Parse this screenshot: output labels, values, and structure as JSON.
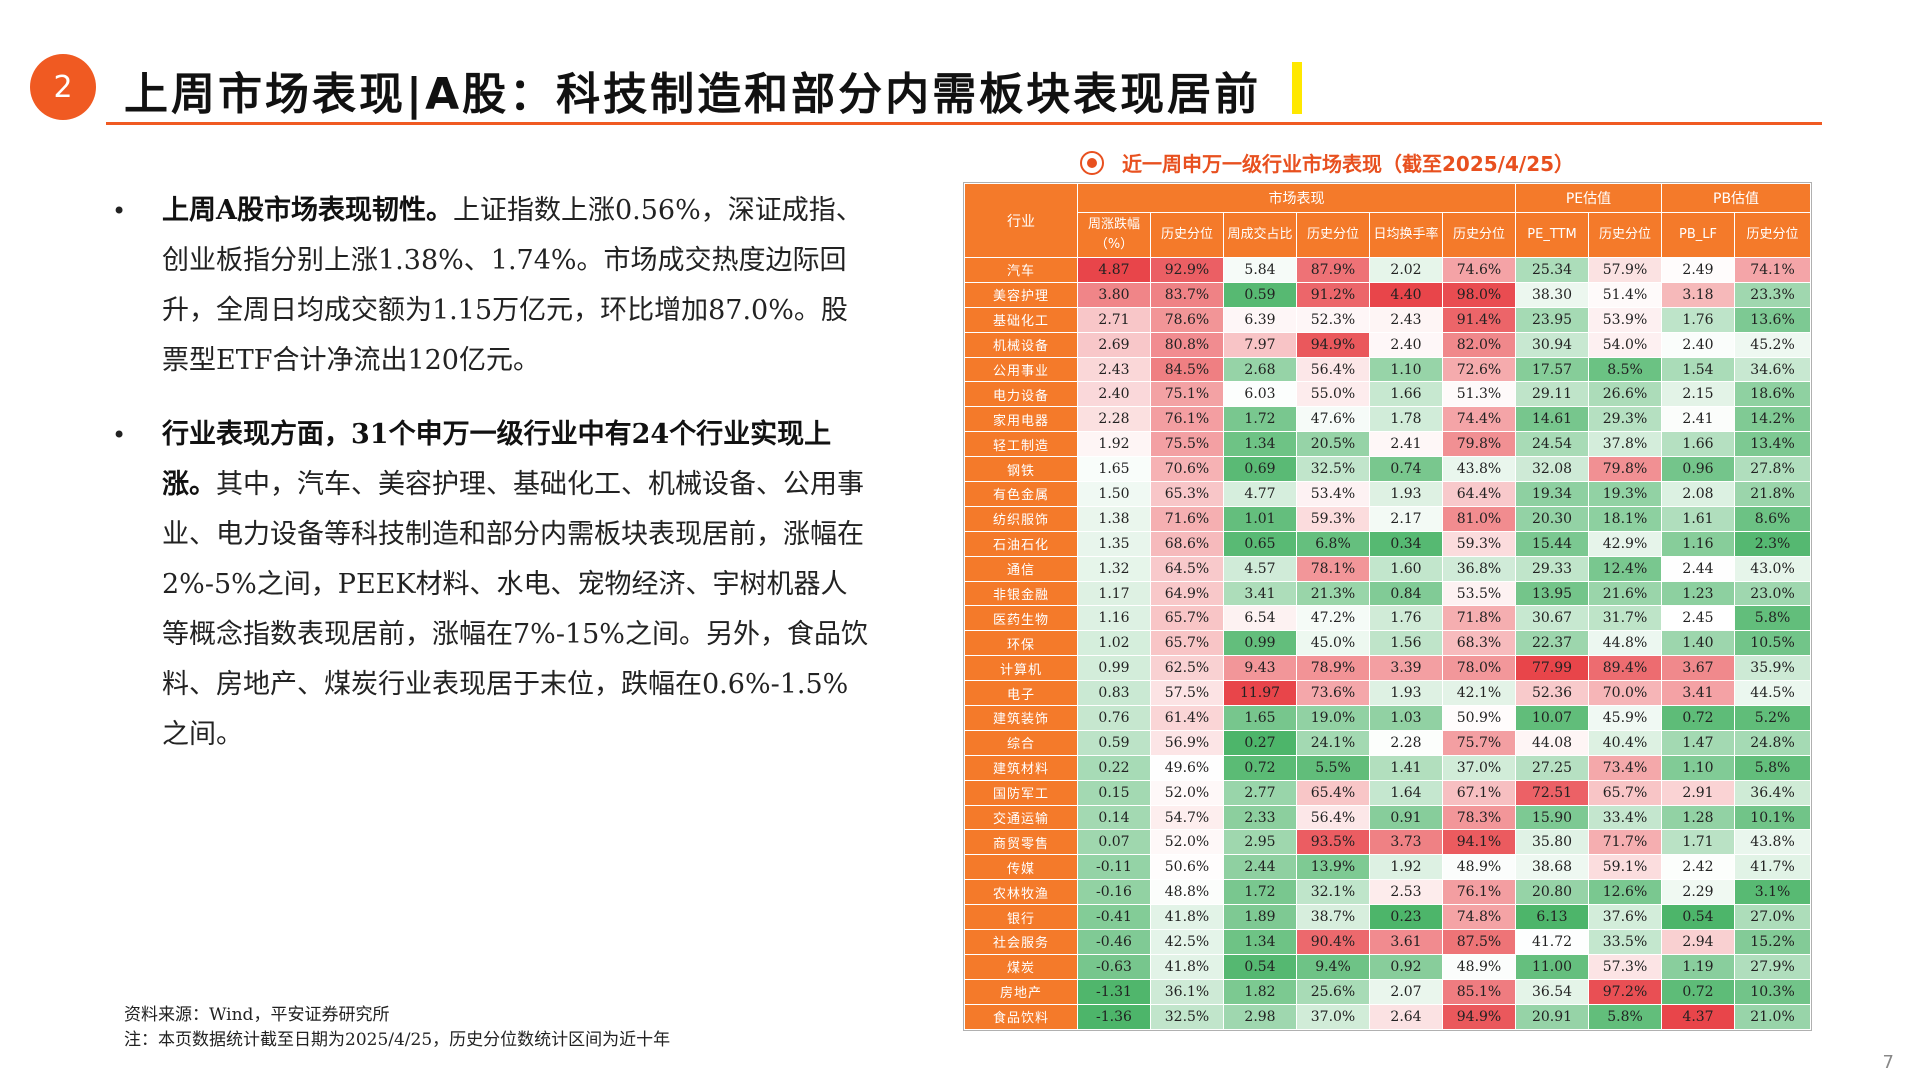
{
  "header": {
    "section_number": "2",
    "title": "上周市场表现|A股：科技制造和部分内需板块表现居前"
  },
  "bullets": [
    {
      "bold": "上周A股市场表现韧性。",
      "text": "上证指数上涨0.56%，深证成指、创业板指分别上涨1.38%、1.74%。市场成交热度边际回升，全周日均成交额为1.15万亿元，环比增加87.0%。股票型ETF合计净流出120亿元。"
    },
    {
      "bold": "行业表现方面，31个申万一级行业中有24个行业实现上涨。",
      "text": "其中，汽车、美容护理、基础化工、机械设备、公用事业、电力设备等科技制造和部分内需板块表现居前，涨幅在2%-5%之间，PEEK材料、水电、宠物经济、宇树机器人等概念指数表现居前，涨幅在7%-15%之间。另外，食品饮料、房地产、煤炭行业表现居于末位，跌幅在0.6%-1.5%之间。"
    }
  ],
  "footnote": {
    "source": "资料来源：Wind，平安证券研究所",
    "note": "注：本页数据统计截至日期为2025/4/25，历史分位数统计区间为近十年"
  },
  "page_number": "7",
  "table": {
    "caption": "近一周申万一级行业市场表现（截至2025/4/25）",
    "group_headers": {
      "industry": "行业",
      "market": "市场表现",
      "pe": "PE估值",
      "pb": "PB估值"
    },
    "sub_headers": {
      "weekly_change": "周涨跌幅（%）",
      "weekly_change_pct": "历史分位",
      "turnover_share": "周成交占比",
      "turnover_share_pct": "历史分位",
      "daily_turnover_rate": "日均换手率",
      "daily_turnover_rate_pct": "历史分位",
      "pe_ttm": "PE_TTM",
      "pe_ttm_pct": "历史分位",
      "pb_lf": "PB_LF",
      "pb_lf_pct": "历史分位"
    },
    "rows": [
      {
        "name": "汽车",
        "v": [
          "4.87",
          "92.9%",
          "5.84",
          "87.9%",
          "2.02",
          "74.6%",
          "25.34",
          "57.9%",
          "2.49",
          "74.1%"
        ]
      },
      {
        "name": "美容护理",
        "v": [
          "3.80",
          "83.7%",
          "0.59",
          "91.2%",
          "4.40",
          "98.0%",
          "38.30",
          "51.4%",
          "3.18",
          "23.3%"
        ]
      },
      {
        "name": "基础化工",
        "v": [
          "2.71",
          "78.6%",
          "6.39",
          "52.3%",
          "2.43",
          "91.4%",
          "23.95",
          "53.9%",
          "1.76",
          "13.6%"
        ]
      },
      {
        "name": "机械设备",
        "v": [
          "2.69",
          "80.8%",
          "7.97",
          "94.9%",
          "2.40",
          "82.0%",
          "30.94",
          "54.0%",
          "2.40",
          "45.2%"
        ]
      },
      {
        "name": "公用事业",
        "v": [
          "2.43",
          "84.5%",
          "2.68",
          "56.4%",
          "1.10",
          "72.6%",
          "17.57",
          "8.5%",
          "1.54",
          "34.6%"
        ]
      },
      {
        "name": "电力设备",
        "v": [
          "2.40",
          "75.1%",
          "6.03",
          "55.0%",
          "1.66",
          "51.3%",
          "29.11",
          "26.6%",
          "2.15",
          "18.6%"
        ]
      },
      {
        "name": "家用电器",
        "v": [
          "2.28",
          "76.1%",
          "1.72",
          "47.6%",
          "1.78",
          "74.4%",
          "14.61",
          "29.3%",
          "2.41",
          "14.2%"
        ]
      },
      {
        "name": "轻工制造",
        "v": [
          "1.92",
          "75.5%",
          "1.34",
          "20.5%",
          "2.41",
          "79.8%",
          "24.54",
          "37.8%",
          "1.66",
          "13.4%"
        ]
      },
      {
        "name": "钢铁",
        "v": [
          "1.65",
          "70.6%",
          "0.69",
          "32.5%",
          "0.74",
          "43.8%",
          "32.08",
          "79.8%",
          "0.96",
          "27.8%"
        ]
      },
      {
        "name": "有色金属",
        "v": [
          "1.50",
          "65.3%",
          "4.77",
          "53.4%",
          "1.93",
          "64.4%",
          "19.34",
          "19.3%",
          "2.08",
          "21.8%"
        ]
      },
      {
        "name": "纺织服饰",
        "v": [
          "1.38",
          "71.6%",
          "1.01",
          "59.3%",
          "2.17",
          "81.0%",
          "20.30",
          "18.1%",
          "1.61",
          "8.6%"
        ]
      },
      {
        "name": "石油石化",
        "v": [
          "1.35",
          "68.6%",
          "0.65",
          "6.8%",
          "0.34",
          "59.3%",
          "15.44",
          "42.9%",
          "1.16",
          "2.3%"
        ]
      },
      {
        "name": "通信",
        "v": [
          "1.32",
          "64.5%",
          "4.57",
          "78.1%",
          "1.60",
          "36.8%",
          "29.33",
          "12.4%",
          "2.44",
          "43.0%"
        ]
      },
      {
        "name": "非银金融",
        "v": [
          "1.17",
          "64.9%",
          "3.41",
          "21.3%",
          "0.84",
          "53.5%",
          "13.95",
          "21.6%",
          "1.23",
          "23.0%"
        ]
      },
      {
        "name": "医药生物",
        "v": [
          "1.16",
          "65.7%",
          "6.54",
          "47.2%",
          "1.76",
          "71.8%",
          "30.67",
          "31.7%",
          "2.45",
          "5.8%"
        ]
      },
      {
        "name": "环保",
        "v": [
          "1.02",
          "65.7%",
          "0.99",
          "45.0%",
          "1.56",
          "68.3%",
          "22.37",
          "44.8%",
          "1.40",
          "10.5%"
        ]
      },
      {
        "name": "计算机",
        "v": [
          "0.99",
          "62.5%",
          "9.43",
          "78.9%",
          "3.39",
          "78.0%",
          "77.99",
          "89.4%",
          "3.67",
          "35.9%"
        ]
      },
      {
        "name": "电子",
        "v": [
          "0.83",
          "57.5%",
          "11.97",
          "73.6%",
          "1.93",
          "42.1%",
          "52.36",
          "70.0%",
          "3.41",
          "44.5%"
        ]
      },
      {
        "name": "建筑装饰",
        "v": [
          "0.76",
          "61.4%",
          "1.65",
          "19.0%",
          "1.03",
          "50.9%",
          "10.07",
          "45.9%",
          "0.72",
          "5.2%"
        ]
      },
      {
        "name": "综合",
        "v": [
          "0.59",
          "56.9%",
          "0.27",
          "24.1%",
          "2.28",
          "75.7%",
          "44.08",
          "40.4%",
          "1.47",
          "24.8%"
        ]
      },
      {
        "name": "建筑材料",
        "v": [
          "0.22",
          "49.6%",
          "0.72",
          "5.5%",
          "1.41",
          "37.0%",
          "27.25",
          "73.4%",
          "1.10",
          "5.8%"
        ]
      },
      {
        "name": "国防军工",
        "v": [
          "0.15",
          "52.0%",
          "2.77",
          "65.4%",
          "1.64",
          "67.1%",
          "72.51",
          "65.7%",
          "2.91",
          "36.4%"
        ]
      },
      {
        "name": "交通运输",
        "v": [
          "0.14",
          "54.7%",
          "2.33",
          "56.4%",
          "0.91",
          "78.3%",
          "15.90",
          "33.4%",
          "1.28",
          "10.1%"
        ]
      },
      {
        "name": "商贸零售",
        "v": [
          "0.07",
          "52.0%",
          "2.95",
          "93.5%",
          "3.73",
          "94.1%",
          "35.80",
          "71.7%",
          "1.71",
          "43.8%"
        ]
      },
      {
        "name": "传媒",
        "v": [
          "-0.11",
          "50.6%",
          "2.44",
          "13.9%",
          "1.92",
          "48.9%",
          "38.68",
          "59.1%",
          "2.42",
          "41.7%"
        ]
      },
      {
        "name": "农林牧渔",
        "v": [
          "-0.16",
          "48.8%",
          "1.72",
          "32.1%",
          "2.53",
          "76.1%",
          "20.80",
          "12.6%",
          "2.29",
          "3.1%"
        ]
      },
      {
        "name": "银行",
        "v": [
          "-0.41",
          "41.8%",
          "1.89",
          "38.7%",
          "0.23",
          "74.8%",
          "6.13",
          "37.6%",
          "0.54",
          "27.0%"
        ]
      },
      {
        "name": "社会服务",
        "v": [
          "-0.46",
          "42.5%",
          "1.34",
          "90.4%",
          "3.61",
          "87.5%",
          "41.72",
          "33.5%",
          "2.94",
          "15.2%"
        ]
      },
      {
        "name": "煤炭",
        "v": [
          "-0.63",
          "41.8%",
          "0.54",
          "9.4%",
          "0.92",
          "48.9%",
          "11.00",
          "57.3%",
          "1.19",
          "27.9%"
        ]
      },
      {
        "name": "房地产",
        "v": [
          "-1.31",
          "36.1%",
          "1.82",
          "25.6%",
          "2.07",
          "85.1%",
          "36.54",
          "97.2%",
          "0.72",
          "10.3%"
        ]
      },
      {
        "name": "食品饮料",
        "v": [
          "-1.36",
          "32.5%",
          "2.98",
          "37.0%",
          "2.64",
          "94.9%",
          "20.91",
          "5.8%",
          "4.37",
          "21.0%"
        ]
      }
    ],
    "colors": {
      "header_bg": "#f47a2a",
      "high": "#e8454a",
      "mid": "#ffffff",
      "low": "#4db56a"
    }
  }
}
